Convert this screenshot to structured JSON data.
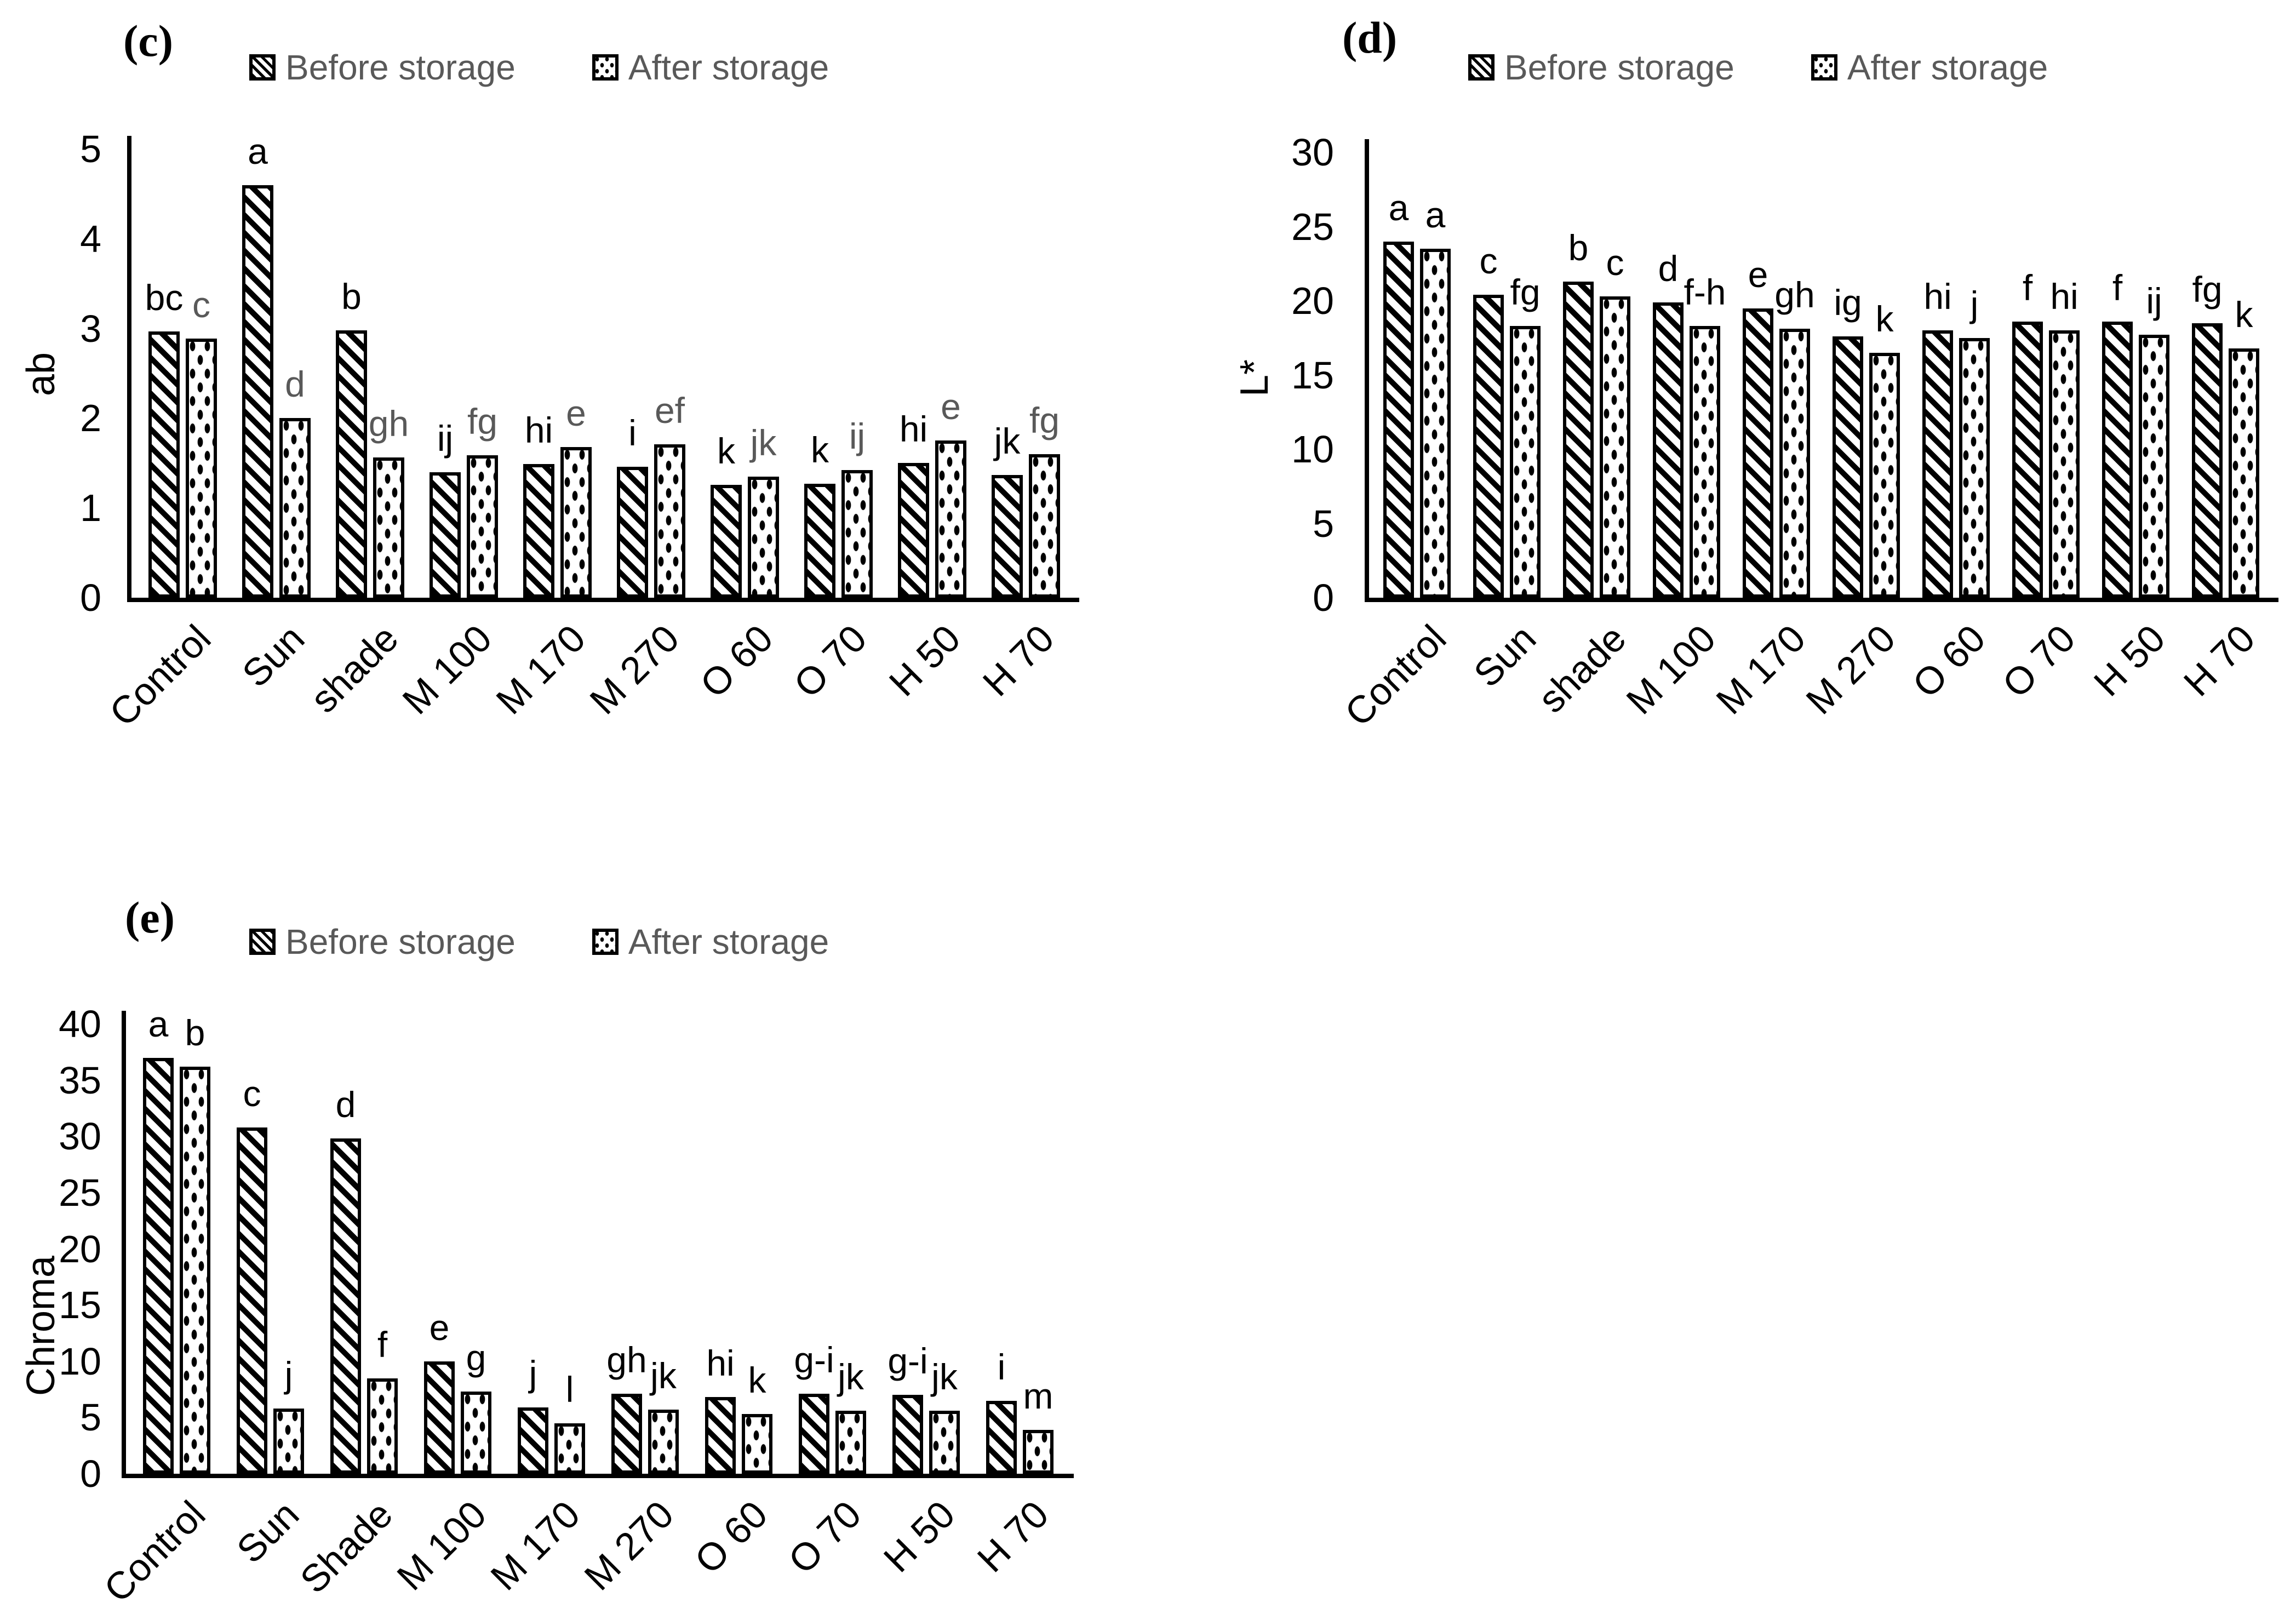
{
  "colors": {
    "bar_outline": "#000000",
    "bar_fill": "#000000",
    "axis": "#000000",
    "legend_text_gray": "#595959",
    "after_letter_gray_panel_c": "#595959",
    "letter_black": "#000000"
  },
  "chart_data": [
    {
      "type": "bar",
      "panel": "(c)",
      "ylabel": "ab",
      "ylim": [
        0,
        5
      ],
      "ytick_step": 1,
      "grid": false,
      "legend_position": "top",
      "categories": [
        "Control",
        "Sun",
        "shade",
        "M 100",
        "M 170",
        "M 270",
        "O 60",
        "O 70",
        "H 50",
        "H 70"
      ],
      "series": [
        {
          "name": "Before storage",
          "pattern": "diagonal-hatch",
          "values": [
            2.97,
            4.6,
            2.98,
            1.4,
            1.49,
            1.46,
            1.26,
            1.27,
            1.5,
            1.37
          ],
          "letters": [
            "bc",
            "a",
            "b",
            "ij",
            "hi",
            "i",
            "k",
            "k",
            "hi",
            "jk"
          ],
          "letter_color": "#000000"
        },
        {
          "name": "After storage",
          "pattern": "dots",
          "values": [
            2.89,
            2.0,
            1.56,
            1.59,
            1.68,
            1.71,
            1.35,
            1.42,
            1.75,
            1.6
          ],
          "letters": [
            "c",
            "d",
            "gh",
            "fg",
            "e",
            "ef",
            "jk",
            "ij",
            "e",
            "fg"
          ],
          "letter_color": "#595959"
        }
      ]
    },
    {
      "type": "bar",
      "panel": "(d)",
      "ylabel": "L*",
      "ylim": [
        0,
        30
      ],
      "ytick_step": 5,
      "grid": false,
      "legend_position": "top",
      "categories": [
        "Control",
        "Sun",
        "shade",
        "M 100",
        "M 170",
        "M 270",
        "O 60",
        "O 70",
        "H 50",
        "H 70"
      ],
      "series": [
        {
          "name": "Before storage",
          "pattern": "diagonal-hatch",
          "values": [
            24.0,
            20.4,
            21.3,
            19.9,
            19.5,
            17.6,
            18.0,
            18.6,
            18.6,
            18.5
          ],
          "letters": [
            "a",
            "c",
            "b",
            "d",
            "e",
            "ig",
            "hi",
            "f",
            "f",
            "fg"
          ],
          "letter_color": "#000000"
        },
        {
          "name": "After storage",
          "pattern": "dots",
          "values": [
            23.5,
            18.3,
            20.3,
            18.3,
            18.1,
            16.5,
            17.5,
            18.0,
            17.7,
            16.8
          ],
          "letters": [
            "a",
            "fg",
            "c",
            "f-h",
            "gh",
            "k",
            "j",
            "hi",
            "ij",
            "k"
          ],
          "letter_color": "#000000"
        }
      ]
    },
    {
      "type": "bar",
      "panel": "(e)",
      "ylabel": "Chroma",
      "ylim": [
        0,
        40
      ],
      "ytick_step": 5,
      "grid": false,
      "legend_position": "top",
      "categories": [
        "Control",
        "Sun",
        "Shade",
        "M 100",
        "M 170",
        "M 270",
        "O 60",
        "O 70",
        "H 50",
        "H 70"
      ],
      "series": [
        {
          "name": "Before storage",
          "pattern": "diagonal-hatch",
          "values": [
            37.0,
            30.8,
            29.8,
            10.0,
            5.9,
            7.1,
            6.8,
            7.1,
            7.0,
            6.5
          ],
          "letters": [
            "a",
            "c",
            "d",
            "e",
            "j",
            "gh",
            "hi",
            "g-i",
            "g-i",
            "i"
          ],
          "letter_color": "#000000"
        },
        {
          "name": "After storage",
          "pattern": "dots",
          "values": [
            36.2,
            5.8,
            8.5,
            7.3,
            4.5,
            5.7,
            5.3,
            5.6,
            5.6,
            3.9
          ],
          "letters": [
            "b",
            "j",
            "f",
            "g",
            "l",
            "jk",
            "k",
            "jk",
            "jk",
            "m"
          ],
          "letter_color": "#000000"
        }
      ]
    }
  ]
}
